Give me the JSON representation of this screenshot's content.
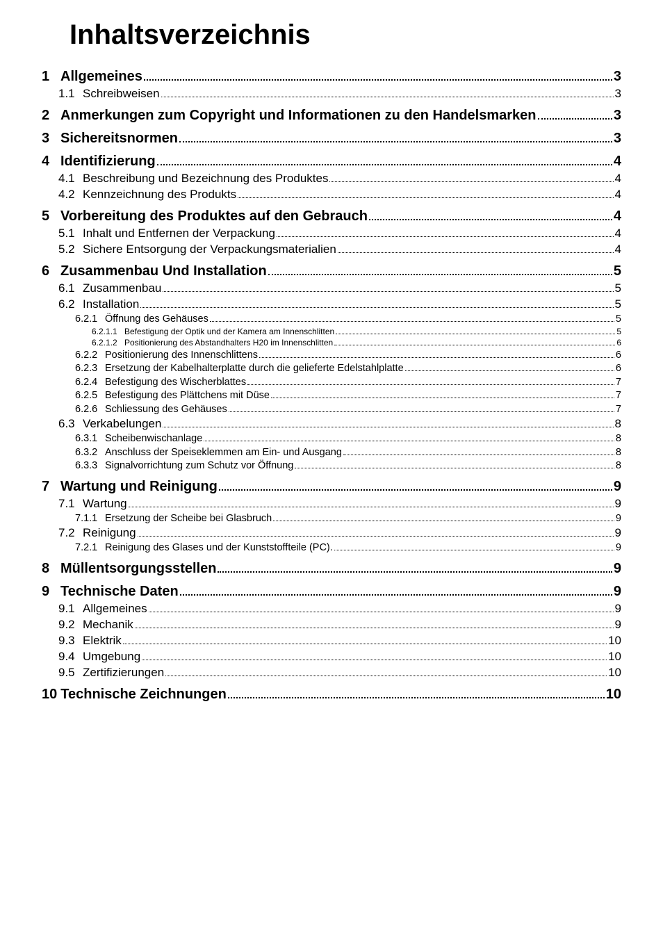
{
  "document": {
    "title": "Inhaltsverzeichnis",
    "text_color": "#000000",
    "background_color": "#ffffff"
  },
  "toc": [
    {
      "level": 1,
      "num": "1",
      "label": "Allgemeines",
      "page": "3"
    },
    {
      "level": 2,
      "num": "1.1",
      "label": "Schreibweisen",
      "page": "3"
    },
    {
      "level": 1,
      "num": "2",
      "label": "Anmerkungen zum Copyright und Informationen zu den Handelsmarken",
      "page": "3"
    },
    {
      "level": 1,
      "num": "3",
      "label": "Sichereitsnormen",
      "page": "3"
    },
    {
      "level": 1,
      "num": "4",
      "label": "Identifizierung",
      "page": "4"
    },
    {
      "level": 2,
      "num": "4.1",
      "label": "Beschreibung und Bezeichnung des Produktes",
      "page": "4"
    },
    {
      "level": 2,
      "num": "4.2",
      "label": "Kennzeichnung des Produkts",
      "page": "4"
    },
    {
      "level": 1,
      "num": "5",
      "label": "Vorbereitung des Produktes auf den Gebrauch",
      "page": "4"
    },
    {
      "level": 2,
      "num": "5.1",
      "label": "Inhalt und Entfernen der Verpackung",
      "page": "4"
    },
    {
      "level": 2,
      "num": "5.2",
      "label": "Sichere Entsorgung der Verpackungsmaterialien",
      "page": "4"
    },
    {
      "level": 1,
      "num": "6",
      "label": "Zusammenbau Und Installation",
      "page": "5"
    },
    {
      "level": 2,
      "num": "6.1",
      "label": "Zusammenbau",
      "page": "5"
    },
    {
      "level": 2,
      "num": "6.2",
      "label": "Installation",
      "page": "5"
    },
    {
      "level": 3,
      "num": "6.2.1",
      "label": "Öffnung des Gehäuses",
      "page": "5"
    },
    {
      "level": 4,
      "num": "6.2.1.1",
      "label": "Befestigung der Optik und der Kamera am Innenschlitten",
      "page": "5"
    },
    {
      "level": 4,
      "num": "6.2.1.2",
      "label": "Positionierung des Abstandhalters H20 im Innenschlitten",
      "page": "6"
    },
    {
      "level": 3,
      "num": "6.2.2",
      "label": "Positionierung des Innenschlittens",
      "page": "6"
    },
    {
      "level": 3,
      "num": "6.2.3",
      "label": "Ersetzung der Kabelhalterplatte durch die gelieferte Edelstahlplatte",
      "page": "6"
    },
    {
      "level": 3,
      "num": "6.2.4",
      "label": "Befestigung des Wischerblattes",
      "page": "7"
    },
    {
      "level": 3,
      "num": "6.2.5",
      "label": "Befestigung des Plättchens mit Düse",
      "page": "7"
    },
    {
      "level": 3,
      "num": "6.2.6",
      "label": "Schliessung des Gehäuses",
      "page": "7"
    },
    {
      "level": 2,
      "num": "6.3",
      "label": "Verkabelungen",
      "page": "8"
    },
    {
      "level": 3,
      "num": "6.3.1",
      "label": "Scheibenwischanlage",
      "page": "8"
    },
    {
      "level": 3,
      "num": "6.3.2",
      "label": "Anschluss der Speiseklemmen am Ein- und Ausgang ",
      "page": "8"
    },
    {
      "level": 3,
      "num": "6.3.3",
      "label": "Signalvorrichtung zum Schutz vor Öffnung",
      "page": "8"
    },
    {
      "level": 1,
      "num": "7",
      "label": "Wartung und Reinigung",
      "page": "9"
    },
    {
      "level": 2,
      "num": "7.1",
      "label": "Wartung",
      "page": "9"
    },
    {
      "level": 3,
      "num": "7.1.1",
      "label": "Ersetzung der Scheibe bei Glasbruch",
      "page": "9"
    },
    {
      "level": 2,
      "num": "7.2",
      "label": "Reinigung",
      "page": "9"
    },
    {
      "level": 3,
      "num": "7.2.1",
      "label": "Reinigung des Glases und der Kunststoffteile (PC).",
      "page": "9"
    },
    {
      "level": 1,
      "num": "8",
      "label": "Müllentsorgungsstellen",
      "page": "9"
    },
    {
      "level": 1,
      "num": "9",
      "label": "Technische Daten",
      "page": "9"
    },
    {
      "level": 2,
      "num": "9.1",
      "label": "Allgemeines",
      "page": "9"
    },
    {
      "level": 2,
      "num": "9.2",
      "label": "Mechanik",
      "page": "9"
    },
    {
      "level": 2,
      "num": "9.3",
      "label": "Elektrik",
      "page": "10"
    },
    {
      "level": 2,
      "num": "9.4",
      "label": "Umgebung",
      "page": "10"
    },
    {
      "level": 2,
      "num": "9.5",
      "label": "Zertifizierungen",
      "page": "10"
    },
    {
      "level": 1,
      "num": "10",
      "label": "Technische Zeichnungen",
      "page": "10"
    }
  ]
}
